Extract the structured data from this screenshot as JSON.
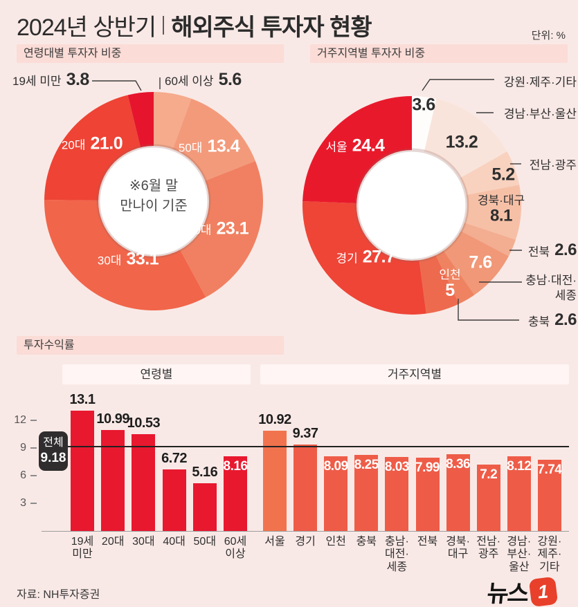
{
  "header": {
    "title_light": "2024년 상반기",
    "title_bold": "해외주식 투자자 현황",
    "unit": "단위: %"
  },
  "sections": {
    "age_share": "연령대별 투자자 비중",
    "region_share": "거주지역별 투자자 비중",
    "returns": "투자수익률"
  },
  "footer": {
    "source": "자료: NH투자증권",
    "logo_text": "뉴스",
    "logo_digit": "1"
  },
  "chart_data": [
    {
      "name": "age_donut",
      "type": "pie",
      "title": "연령대별 투자자 비중",
      "unit": "%",
      "center_note": "※6월 말\n만나이 기준",
      "slices": [
        {
          "label": "60세 이상",
          "value": 5.6,
          "display": "5.6",
          "color": "#f5ab8c"
        },
        {
          "label": "50대",
          "value": 13.4,
          "display": "13.4",
          "color": "#f39a7b"
        },
        {
          "label": "40대",
          "value": 23.1,
          "display": "23.1",
          "color": "#f08061"
        },
        {
          "label": "30대",
          "value": 33.1,
          "display": "33.1",
          "color": "#f1654a"
        },
        {
          "label": "20대",
          "value": 21.0,
          "display": "21.0",
          "color": "#ee4335"
        },
        {
          "label": "19세 미만",
          "value": 3.8,
          "display": "3.8",
          "color": "#e6152d"
        }
      ]
    },
    {
      "name": "region_donut",
      "type": "pie",
      "title": "거주지역별 투자자 비중",
      "unit": "%",
      "slices": [
        {
          "label": "강원·제주·기타",
          "value": 3.6,
          "display": "3.6",
          "color": "#fefdfc"
        },
        {
          "label": "경남·부산·울산",
          "value": 13.2,
          "display": "13.2",
          "color": "#f9e4db"
        },
        {
          "label": "전남·광주",
          "value": 5.2,
          "display": "5.2",
          "color": "#f8d2bf"
        },
        {
          "label": "경북·대구",
          "value": 8.1,
          "display": "8.1",
          "color": "#f6c0a7"
        },
        {
          "label": "전북",
          "value": 2.6,
          "display": "2.6",
          "color": "#f3ad91"
        },
        {
          "label": "충남·대전·세종",
          "label_lines": [
            "충남·대전·",
            "세종"
          ],
          "value": 7.6,
          "display": "7.6",
          "color": "#f09877"
        },
        {
          "label": "충북",
          "value": 2.6,
          "display": "2.6",
          "color": "#ef8361"
        },
        {
          "label": "인천",
          "value": 5,
          "display": "5",
          "color": "#ed6a4e"
        },
        {
          "label": "경기",
          "value": 27.7,
          "display": "27.7",
          "color": "#ee4537"
        },
        {
          "label": "서울",
          "value": 24.4,
          "display": "24.4",
          "color": "#e9192c"
        }
      ]
    },
    {
      "name": "returns_bar",
      "type": "bar",
      "title": "투자수익률",
      "unit": "%",
      "yticks": [
        3,
        6,
        9,
        12
      ],
      "overall": {
        "label": "전체",
        "value": 9.18,
        "display": "9.18"
      },
      "groups": [
        {
          "label": "연령별",
          "bar_color": "#e8182f",
          "bars": [
            {
              "category": "19세 미만",
              "lines": [
                "19세",
                "미만"
              ],
              "value": 13.1,
              "display": "13.1",
              "label_inside": false
            },
            {
              "category": "20대",
              "lines": [
                "20대"
              ],
              "value": 10.99,
              "display": "10.99",
              "label_inside": false
            },
            {
              "category": "30대",
              "lines": [
                "30대"
              ],
              "value": 10.53,
              "display": "10.53",
              "label_inside": false
            },
            {
              "category": "40대",
              "lines": [
                "40대"
              ],
              "value": 6.72,
              "display": "6.72",
              "label_inside": false
            },
            {
              "category": "50대",
              "lines": [
                "50대"
              ],
              "value": 5.16,
              "display": "5.16",
              "label_inside": false
            },
            {
              "category": "60세 이상",
              "lines": [
                "60세",
                "이상"
              ],
              "value": 8.16,
              "display": "8.16",
              "label_inside": true
            }
          ]
        },
        {
          "label": "거주지역별",
          "bar_color": "#ee5c48",
          "bars": [
            {
              "category": "서울",
              "lines": [
                "서울"
              ],
              "value": 10.92,
              "display": "10.92",
              "label_inside": false,
              "color": "#f1734e"
            },
            {
              "category": "경기",
              "lines": [
                "경기"
              ],
              "value": 9.37,
              "display": "9.37",
              "label_inside": false
            },
            {
              "category": "인천",
              "lines": [
                "인천"
              ],
              "value": 8.09,
              "display": "8.09",
              "label_inside": true
            },
            {
              "category": "충북",
              "lines": [
                "충북"
              ],
              "value": 8.25,
              "display": "8.25",
              "label_inside": true
            },
            {
              "category": "충남·대전·세종",
              "lines": [
                "충남·",
                "대전·",
                "세종"
              ],
              "value": 8.03,
              "display": "8.03",
              "label_inside": true
            },
            {
              "category": "전북",
              "lines": [
                "전북"
              ],
              "value": 7.99,
              "display": "7.99",
              "label_inside": true
            },
            {
              "category": "경북·대구",
              "lines": [
                "경북·",
                "대구"
              ],
              "value": 8.36,
              "display": "8.36",
              "label_inside": true
            },
            {
              "category": "전남·광주",
              "lines": [
                "전남·",
                "광주"
              ],
              "value": 7.2,
              "display": "7.2",
              "label_inside": true
            },
            {
              "category": "경남·부산·울산",
              "lines": [
                "경남·",
                "부산·",
                "울산"
              ],
              "value": 8.12,
              "display": "8.12",
              "label_inside": true
            },
            {
              "category": "강원·제주·기타",
              "lines": [
                "강원·",
                "제주·",
                "기타"
              ],
              "value": 7.74,
              "display": "7.74",
              "label_inside": true
            }
          ]
        }
      ]
    }
  ]
}
